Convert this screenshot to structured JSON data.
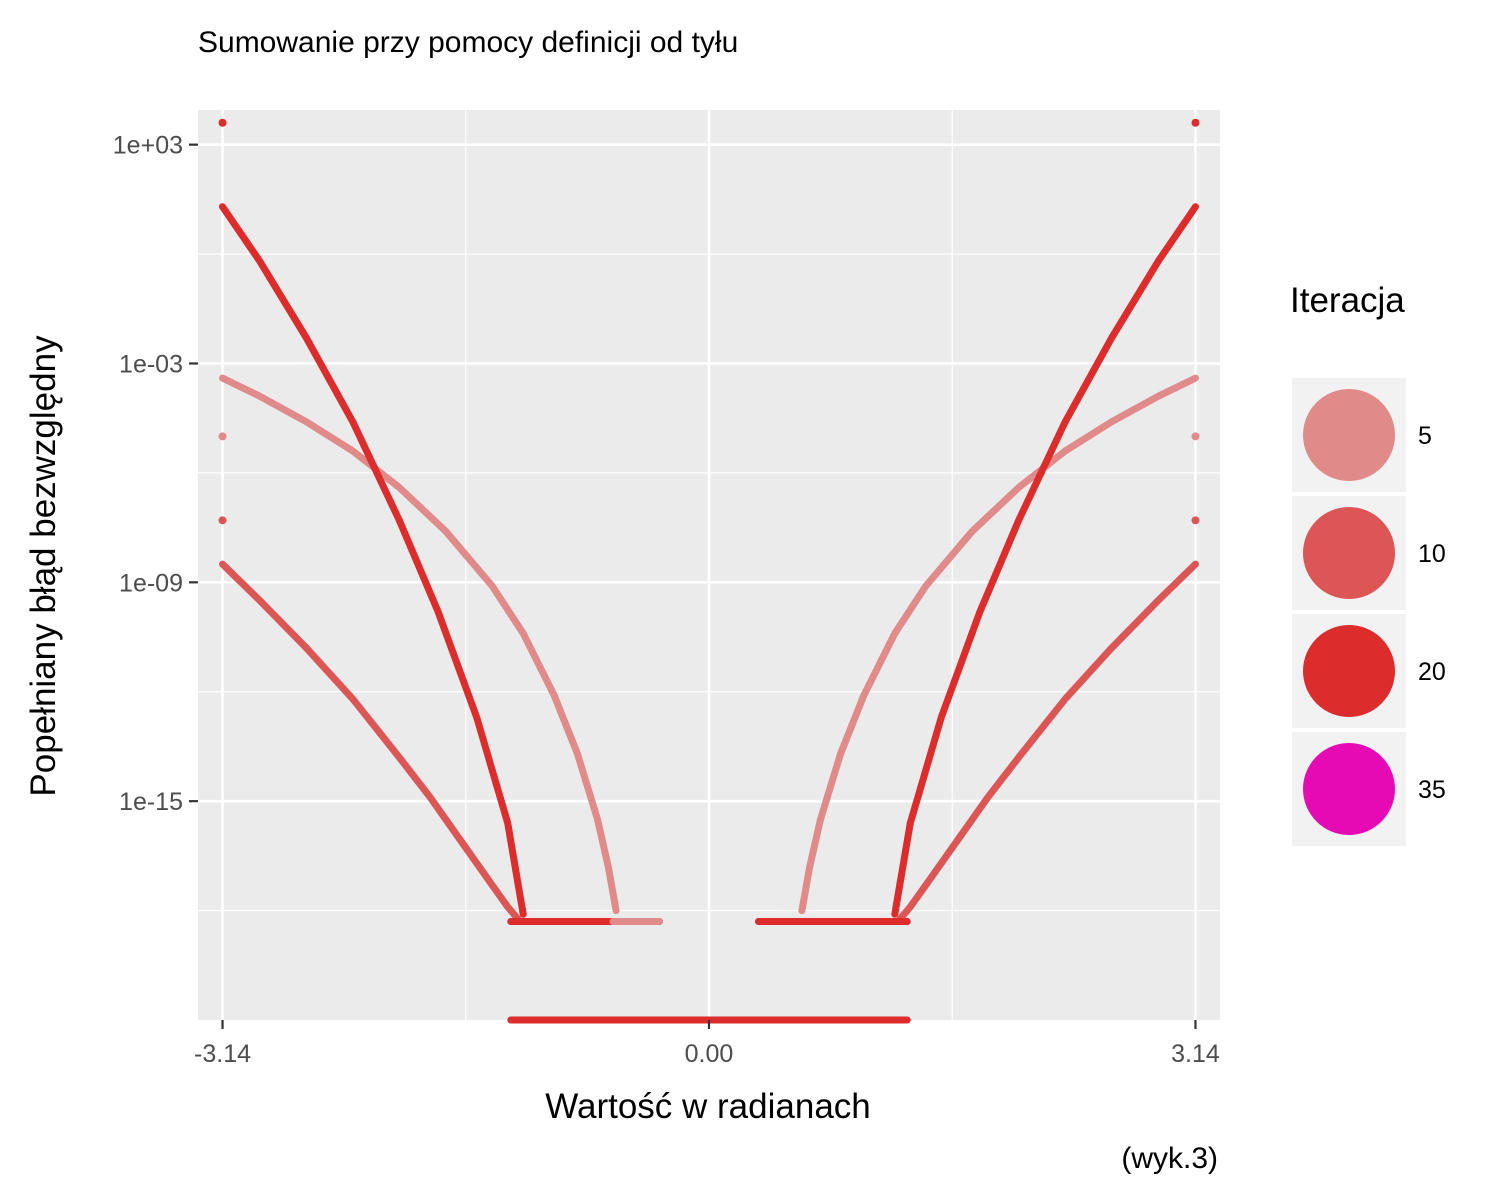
{
  "chart_data": {
    "type": "scatter",
    "title": "Sumowanie przy pomocy definicji od tyłu",
    "xlabel": "Wartość w radianach",
    "ylabel": "Popełniany błąd bezwzględny",
    "caption": "(wyk.3)",
    "y_scale": "log10",
    "xlim": [
      -3.3,
      3.3
    ],
    "ylim_log10": [
      -21.0,
      3.95
    ],
    "x_ticks": [
      {
        "value": -3.14159,
        "label": "-3.14"
      },
      {
        "value": 0.0,
        "label": "0.00"
      },
      {
        "value": 3.14159,
        "label": "3.14"
      }
    ],
    "y_ticks": [
      {
        "log10": 3,
        "label": "1e+03"
      },
      {
        "log10": -3,
        "label": "1e-03"
      },
      {
        "log10": -9,
        "label": "1e-09"
      },
      {
        "log10": -15,
        "label": "1e-15"
      }
    ],
    "y_minor_log10": [
      0,
      -6,
      -12,
      -18
    ],
    "x_minor": [
      -1.5708,
      1.5708
    ],
    "grid": true,
    "legend": {
      "title": "Iteracja",
      "position": "right",
      "items": [
        {
          "label": "5",
          "color": "#e08a8a"
        },
        {
          "label": "10",
          "color": "#dc5656"
        },
        {
          "label": "20",
          "color": "#dc2c2c"
        },
        {
          "label": "35",
          "color": "#e60ab4"
        }
      ]
    },
    "series": [
      {
        "name": "5",
        "color": "#e08a8a",
        "x": [
          -3.14159,
          -2.9,
          -2.6,
          -2.3,
          -2.0,
          -1.7,
          -1.4,
          -1.2,
          -1.0,
          -0.85,
          -0.72,
          -0.65,
          -0.6,
          0.6,
          0.65,
          0.72,
          0.85,
          1.0,
          1.2,
          1.4,
          1.7,
          2.0,
          2.3,
          2.6,
          2.9,
          3.14159
        ],
        "y_log10": [
          -3.4,
          -3.9,
          -4.6,
          -5.4,
          -6.4,
          -7.6,
          -9.1,
          -10.4,
          -12.1,
          -13.7,
          -15.5,
          -16.8,
          -18.0,
          -18.0,
          -16.8,
          -15.5,
          -13.7,
          -12.1,
          -10.4,
          -9.1,
          -7.6,
          -6.4,
          -5.4,
          -4.6,
          -3.9,
          -3.4
        ]
      },
      {
        "name": "10",
        "color": "#dc5656",
        "x": [
          -3.14159,
          -2.9,
          -2.6,
          -2.3,
          -2.0,
          -1.8,
          -1.6,
          -1.4,
          -1.3,
          -1.22,
          1.22,
          1.3,
          1.4,
          1.6,
          1.8,
          2.0,
          2.3,
          2.6,
          2.9,
          3.14159
        ],
        "y_log10": [
          -8.5,
          -9.5,
          -10.8,
          -12.2,
          -13.8,
          -14.9,
          -16.1,
          -17.3,
          -17.9,
          -18.3,
          -18.3,
          -17.9,
          -17.3,
          -16.1,
          -14.9,
          -13.8,
          -12.2,
          -10.8,
          -9.5,
          -8.5
        ]
      },
      {
        "name": "20",
        "color": "#dc2c2c",
        "x": [
          -3.14159,
          -2.9,
          -2.6,
          -2.3,
          -2.0,
          -1.75,
          -1.5,
          -1.3,
          -1.2,
          1.2,
          1.3,
          1.5,
          1.75,
          2.0,
          2.3,
          2.6,
          2.9,
          3.14159
        ],
        "y_log10": [
          1.3,
          -0.2,
          -2.3,
          -4.6,
          -7.3,
          -9.8,
          -12.7,
          -15.6,
          -18.1,
          -18.1,
          -15.6,
          -12.7,
          -9.8,
          -7.3,
          -4.6,
          -2.3,
          -0.2,
          1.3
        ]
      }
    ],
    "floor_segments": [
      {
        "series": "10",
        "color": "#dc5656",
        "x_from": -1.28,
        "x_to": -0.32,
        "y_log10": -18.3
      },
      {
        "series": "20",
        "color": "#dc2c2c",
        "x_from": -1.28,
        "x_to": -0.32,
        "y_log10": -18.3
      },
      {
        "series": "5",
        "color": "#e08a8a",
        "x_from": -0.62,
        "x_to": -0.32,
        "y_log10": -18.3
      },
      {
        "series": "5",
        "color": "#e08a8a",
        "x_from": 0.32,
        "x_to": 0.62,
        "y_log10": -18.3
      },
      {
        "series": "10",
        "color": "#dc5656",
        "x_from": 0.32,
        "x_to": 1.28,
        "y_log10": -18.3
      },
      {
        "series": "20",
        "color": "#dc2c2c",
        "x_from": 0.32,
        "x_to": 1.28,
        "y_log10": -18.3
      },
      {
        "series": "20",
        "color": "#dc2c2c",
        "x_from": -1.28,
        "x_to": 1.28,
        "y_log10": -21.0
      }
    ],
    "edge_points": [
      {
        "x": -3.14159,
        "y_log10": 3.6,
        "color": "#dc2c2c"
      },
      {
        "x": -3.14159,
        "y_log10": -5.0,
        "color": "#e08a8a"
      },
      {
        "x": -3.14159,
        "y_log10": -7.3,
        "color": "#dc5656"
      },
      {
        "x": 3.14159,
        "y_log10": 3.6,
        "color": "#dc2c2c"
      },
      {
        "x": 3.14159,
        "y_log10": -5.0,
        "color": "#e08a8a"
      },
      {
        "x": 3.14159,
        "y_log10": -7.3,
        "color": "#dc5656"
      }
    ]
  }
}
